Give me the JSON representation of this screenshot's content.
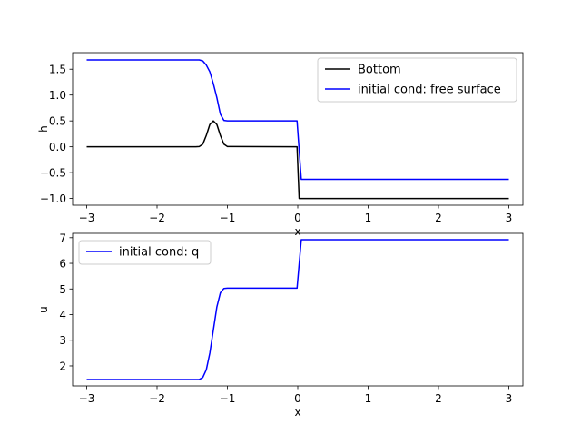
{
  "chart_data": [
    {
      "type": "line",
      "xlabel": "x",
      "ylabel": "h",
      "xlim": [
        -3.2,
        3.2
      ],
      "ylim": [
        -1.13,
        1.82
      ],
      "xticks": [
        -3,
        -2,
        -1,
        0,
        1,
        2,
        3
      ],
      "xtick_labels": [
        "−3",
        "−2",
        "−1",
        "0",
        "1",
        "2",
        "3"
      ],
      "yticks": [
        -1.0,
        -0.5,
        0.0,
        0.5,
        1.0,
        1.5
      ],
      "ytick_labels": [
        "−1.0",
        "−0.5",
        "0.0",
        "0.5",
        "1.0",
        "1.5"
      ],
      "legend_position": "upper right",
      "series": [
        {
          "name": "Bottom",
          "color": "#000000",
          "x": [
            -3.0,
            -1.45,
            -1.4,
            -1.35,
            -1.3,
            -1.25,
            -1.2,
            -1.15,
            -1.1,
            -1.05,
            -1.0,
            -0.01,
            0.02,
            3.0
          ],
          "y": [
            0.0,
            0.0,
            0.005,
            0.05,
            0.22,
            0.43,
            0.5,
            0.43,
            0.22,
            0.05,
            0.005,
            0.0,
            -1.0,
            -1.0
          ]
        },
        {
          "name": "initial cond: free surface",
          "color": "#0000ff",
          "x": [
            -3.0,
            -1.4,
            -1.35,
            -1.3,
            -1.25,
            -1.2,
            -1.15,
            -1.1,
            -1.05,
            -1.0,
            -0.01,
            0.05,
            3.0
          ],
          "y": [
            1.68,
            1.68,
            1.66,
            1.58,
            1.45,
            1.22,
            0.95,
            0.63,
            0.51,
            0.5,
            0.5,
            -0.63,
            -0.63
          ]
        }
      ]
    },
    {
      "type": "line",
      "xlabel": "x",
      "ylabel": "u",
      "xlim": [
        -3.2,
        3.2
      ],
      "ylim": [
        1.22,
        7.17
      ],
      "xticks": [
        -3,
        -2,
        -1,
        0,
        1,
        2,
        3
      ],
      "xtick_labels": [
        "−3",
        "−2",
        "−1",
        "0",
        "1",
        "2",
        "3"
      ],
      "yticks": [
        2,
        3,
        4,
        5,
        6,
        7
      ],
      "ytick_labels": [
        "2",
        "3",
        "4",
        "5",
        "6",
        "7"
      ],
      "legend_position": "upper left",
      "series": [
        {
          "name": "initial cond: q",
          "color": "#0000ff",
          "x": [
            -3.0,
            -1.4,
            -1.35,
            -1.3,
            -1.25,
            -1.2,
            -1.15,
            -1.1,
            -1.05,
            -1.0,
            -0.01,
            0.05,
            3.0
          ],
          "y": [
            1.47,
            1.47,
            1.55,
            1.85,
            2.5,
            3.4,
            4.3,
            4.85,
            5.02,
            5.03,
            5.03,
            6.92,
            6.92
          ]
        }
      ]
    }
  ]
}
